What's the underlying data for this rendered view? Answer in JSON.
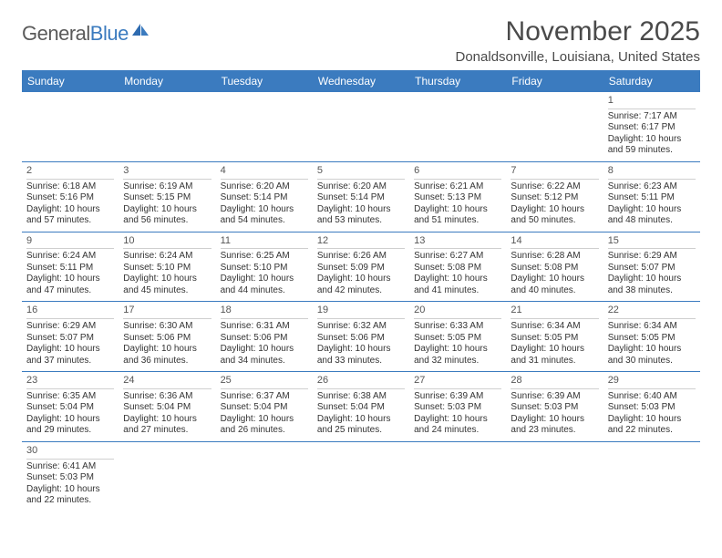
{
  "logo": {
    "text_gray": "General",
    "text_blue": "Blue"
  },
  "header": {
    "month_title": "November 2025",
    "location": "Donaldsonville, Louisiana, United States"
  },
  "weekdays": [
    "Sunday",
    "Monday",
    "Tuesday",
    "Wednesday",
    "Thursday",
    "Friday",
    "Saturday"
  ],
  "colors": {
    "header_bg": "#3b7bbf",
    "week_border": "#3b7bbf",
    "daynum_border": "#cfcfcf",
    "text": "#333333"
  },
  "weeks": [
    [
      {
        "empty": true
      },
      {
        "empty": true
      },
      {
        "empty": true
      },
      {
        "empty": true
      },
      {
        "empty": true
      },
      {
        "empty": true
      },
      {
        "num": "1",
        "sunrise": "Sunrise: 7:17 AM",
        "sunset": "Sunset: 6:17 PM",
        "dl1": "Daylight: 10 hours",
        "dl2": "and 59 minutes."
      }
    ],
    [
      {
        "num": "2",
        "sunrise": "Sunrise: 6:18 AM",
        "sunset": "Sunset: 5:16 PM",
        "dl1": "Daylight: 10 hours",
        "dl2": "and 57 minutes."
      },
      {
        "num": "3",
        "sunrise": "Sunrise: 6:19 AM",
        "sunset": "Sunset: 5:15 PM",
        "dl1": "Daylight: 10 hours",
        "dl2": "and 56 minutes."
      },
      {
        "num": "4",
        "sunrise": "Sunrise: 6:20 AM",
        "sunset": "Sunset: 5:14 PM",
        "dl1": "Daylight: 10 hours",
        "dl2": "and 54 minutes."
      },
      {
        "num": "5",
        "sunrise": "Sunrise: 6:20 AM",
        "sunset": "Sunset: 5:14 PM",
        "dl1": "Daylight: 10 hours",
        "dl2": "and 53 minutes."
      },
      {
        "num": "6",
        "sunrise": "Sunrise: 6:21 AM",
        "sunset": "Sunset: 5:13 PM",
        "dl1": "Daylight: 10 hours",
        "dl2": "and 51 minutes."
      },
      {
        "num": "7",
        "sunrise": "Sunrise: 6:22 AM",
        "sunset": "Sunset: 5:12 PM",
        "dl1": "Daylight: 10 hours",
        "dl2": "and 50 minutes."
      },
      {
        "num": "8",
        "sunrise": "Sunrise: 6:23 AM",
        "sunset": "Sunset: 5:11 PM",
        "dl1": "Daylight: 10 hours",
        "dl2": "and 48 minutes."
      }
    ],
    [
      {
        "num": "9",
        "sunrise": "Sunrise: 6:24 AM",
        "sunset": "Sunset: 5:11 PM",
        "dl1": "Daylight: 10 hours",
        "dl2": "and 47 minutes."
      },
      {
        "num": "10",
        "sunrise": "Sunrise: 6:24 AM",
        "sunset": "Sunset: 5:10 PM",
        "dl1": "Daylight: 10 hours",
        "dl2": "and 45 minutes."
      },
      {
        "num": "11",
        "sunrise": "Sunrise: 6:25 AM",
        "sunset": "Sunset: 5:10 PM",
        "dl1": "Daylight: 10 hours",
        "dl2": "and 44 minutes."
      },
      {
        "num": "12",
        "sunrise": "Sunrise: 6:26 AM",
        "sunset": "Sunset: 5:09 PM",
        "dl1": "Daylight: 10 hours",
        "dl2": "and 42 minutes."
      },
      {
        "num": "13",
        "sunrise": "Sunrise: 6:27 AM",
        "sunset": "Sunset: 5:08 PM",
        "dl1": "Daylight: 10 hours",
        "dl2": "and 41 minutes."
      },
      {
        "num": "14",
        "sunrise": "Sunrise: 6:28 AM",
        "sunset": "Sunset: 5:08 PM",
        "dl1": "Daylight: 10 hours",
        "dl2": "and 40 minutes."
      },
      {
        "num": "15",
        "sunrise": "Sunrise: 6:29 AM",
        "sunset": "Sunset: 5:07 PM",
        "dl1": "Daylight: 10 hours",
        "dl2": "and 38 minutes."
      }
    ],
    [
      {
        "num": "16",
        "sunrise": "Sunrise: 6:29 AM",
        "sunset": "Sunset: 5:07 PM",
        "dl1": "Daylight: 10 hours",
        "dl2": "and 37 minutes."
      },
      {
        "num": "17",
        "sunrise": "Sunrise: 6:30 AM",
        "sunset": "Sunset: 5:06 PM",
        "dl1": "Daylight: 10 hours",
        "dl2": "and 36 minutes."
      },
      {
        "num": "18",
        "sunrise": "Sunrise: 6:31 AM",
        "sunset": "Sunset: 5:06 PM",
        "dl1": "Daylight: 10 hours",
        "dl2": "and 34 minutes."
      },
      {
        "num": "19",
        "sunrise": "Sunrise: 6:32 AM",
        "sunset": "Sunset: 5:06 PM",
        "dl1": "Daylight: 10 hours",
        "dl2": "and 33 minutes."
      },
      {
        "num": "20",
        "sunrise": "Sunrise: 6:33 AM",
        "sunset": "Sunset: 5:05 PM",
        "dl1": "Daylight: 10 hours",
        "dl2": "and 32 minutes."
      },
      {
        "num": "21",
        "sunrise": "Sunrise: 6:34 AM",
        "sunset": "Sunset: 5:05 PM",
        "dl1": "Daylight: 10 hours",
        "dl2": "and 31 minutes."
      },
      {
        "num": "22",
        "sunrise": "Sunrise: 6:34 AM",
        "sunset": "Sunset: 5:05 PM",
        "dl1": "Daylight: 10 hours",
        "dl2": "and 30 minutes."
      }
    ],
    [
      {
        "num": "23",
        "sunrise": "Sunrise: 6:35 AM",
        "sunset": "Sunset: 5:04 PM",
        "dl1": "Daylight: 10 hours",
        "dl2": "and 29 minutes."
      },
      {
        "num": "24",
        "sunrise": "Sunrise: 6:36 AM",
        "sunset": "Sunset: 5:04 PM",
        "dl1": "Daylight: 10 hours",
        "dl2": "and 27 minutes."
      },
      {
        "num": "25",
        "sunrise": "Sunrise: 6:37 AM",
        "sunset": "Sunset: 5:04 PM",
        "dl1": "Daylight: 10 hours",
        "dl2": "and 26 minutes."
      },
      {
        "num": "26",
        "sunrise": "Sunrise: 6:38 AM",
        "sunset": "Sunset: 5:04 PM",
        "dl1": "Daylight: 10 hours",
        "dl2": "and 25 minutes."
      },
      {
        "num": "27",
        "sunrise": "Sunrise: 6:39 AM",
        "sunset": "Sunset: 5:03 PM",
        "dl1": "Daylight: 10 hours",
        "dl2": "and 24 minutes."
      },
      {
        "num": "28",
        "sunrise": "Sunrise: 6:39 AM",
        "sunset": "Sunset: 5:03 PM",
        "dl1": "Daylight: 10 hours",
        "dl2": "and 23 minutes."
      },
      {
        "num": "29",
        "sunrise": "Sunrise: 6:40 AM",
        "sunset": "Sunset: 5:03 PM",
        "dl1": "Daylight: 10 hours",
        "dl2": "and 22 minutes."
      }
    ],
    [
      {
        "num": "30",
        "sunrise": "Sunrise: 6:41 AM",
        "sunset": "Sunset: 5:03 PM",
        "dl1": "Daylight: 10 hours",
        "dl2": "and 22 minutes."
      },
      {
        "empty": true
      },
      {
        "empty": true
      },
      {
        "empty": true
      },
      {
        "empty": true
      },
      {
        "empty": true
      },
      {
        "empty": true
      }
    ]
  ]
}
